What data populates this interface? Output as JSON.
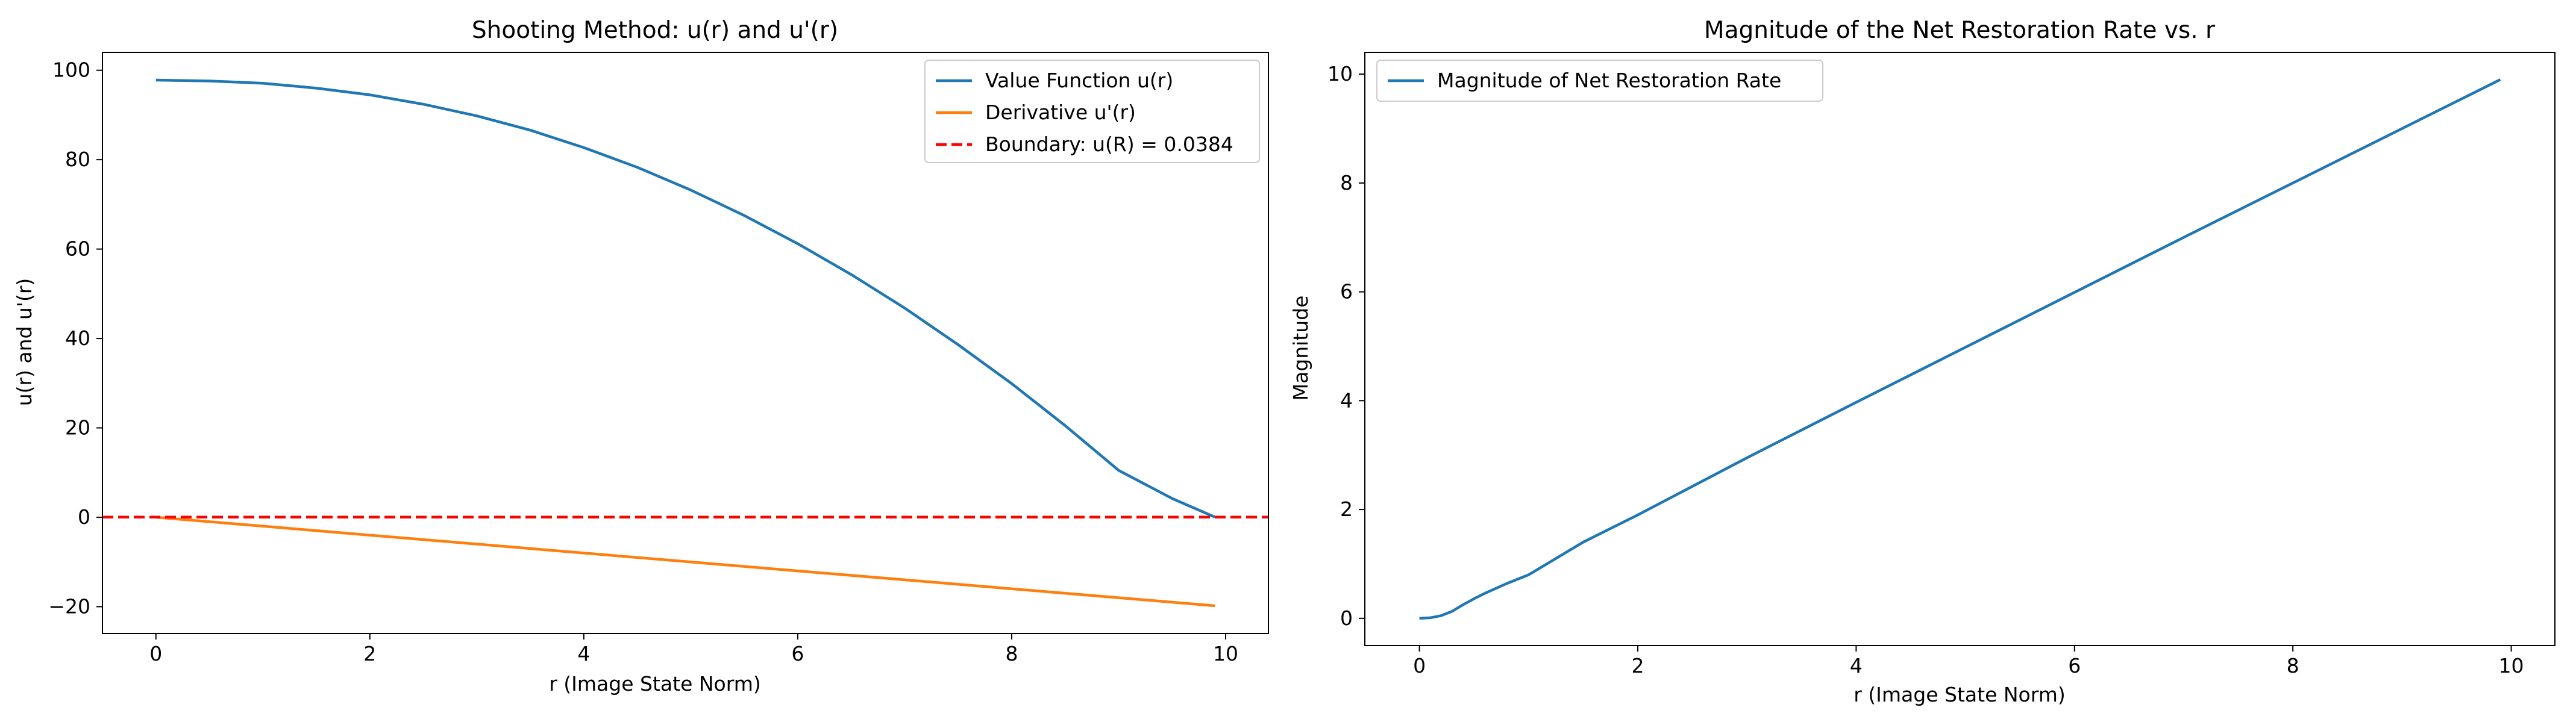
{
  "chart_data": [
    {
      "type": "line",
      "title": "Shooting Method: u(r) and u'(r)",
      "xlabel": "r (Image State Norm)",
      "ylabel": "u(r) and u'(r)",
      "xlim": [
        -0.5,
        10.4
      ],
      "ylim": [
        -26,
        104
      ],
      "xticks": [
        0,
        2,
        4,
        6,
        8,
        10
      ],
      "yticks": [
        -20,
        0,
        20,
        40,
        60,
        80,
        100
      ],
      "xtick_labels": [
        "0",
        "2",
        "4",
        "6",
        "8",
        "10"
      ],
      "ytick_labels": [
        "−20",
        "0",
        "20",
        "40",
        "60",
        "80",
        "100"
      ],
      "legend_position": "top-right",
      "series": [
        {
          "name": "Value Function u(r)",
          "color": "#1f77b4",
          "style": "solid",
          "x": [
            0,
            0.5,
            1,
            1.5,
            2,
            2.5,
            3,
            3.5,
            4,
            4.5,
            5,
            5.5,
            6,
            6.5,
            7,
            7.5,
            8,
            8.5,
            9,
            9.5,
            9.9
          ],
          "y": [
            97.8,
            97.6,
            97.1,
            96.0,
            94.5,
            92.4,
            89.8,
            86.6,
            82.7,
            78.3,
            73.2,
            67.5,
            61.2,
            54.3,
            46.8,
            38.6,
            29.9,
            20.5,
            10.5,
            4.2,
            0.04
          ]
        },
        {
          "name": "Derivative u'(r)",
          "color": "#ff7f0e",
          "style": "solid",
          "x": [
            0,
            1,
            2,
            3,
            4,
            5,
            6,
            7,
            8,
            9,
            9.9
          ],
          "y": [
            0,
            -2.0,
            -4.0,
            -6.0,
            -8.0,
            -10.0,
            -12.0,
            -14.0,
            -16.0,
            -18.0,
            -19.8
          ]
        },
        {
          "name": "Boundary: u(R) = 0.0384",
          "color": "#ff0000",
          "style": "dashed",
          "hline": 0.0384
        }
      ]
    },
    {
      "type": "line",
      "title": "Magnitude of the Net Restoration Rate vs. r",
      "xlabel": "r (Image State Norm)",
      "ylabel": "Magnitude",
      "xlim": [
        -0.5,
        10.4
      ],
      "ylim": [
        -0.5,
        10.4
      ],
      "xticks": [
        0,
        2,
        4,
        6,
        8,
        10
      ],
      "yticks": [
        0,
        2,
        4,
        6,
        8,
        10
      ],
      "xtick_labels": [
        "0",
        "2",
        "4",
        "6",
        "8",
        "10"
      ],
      "ytick_labels": [
        "0",
        "2",
        "4",
        "6",
        "8",
        "10"
      ],
      "legend_position": "top-left",
      "series": [
        {
          "name": "Magnitude of Net Restoration Rate",
          "color": "#1f77b4",
          "style": "solid",
          "x": [
            0,
            0.1,
            0.2,
            0.3,
            0.4,
            0.5,
            0.6,
            0.8,
            1.0,
            1.5,
            2,
            3,
            4,
            5,
            6,
            7,
            8,
            9,
            9.9
          ],
          "y": [
            0,
            0.01,
            0.05,
            0.13,
            0.25,
            0.36,
            0.46,
            0.64,
            0.8,
            1.4,
            1.9,
            2.95,
            3.97,
            4.98,
            5.99,
            7.0,
            8.0,
            9.0,
            9.9
          ]
        }
      ]
    }
  ]
}
